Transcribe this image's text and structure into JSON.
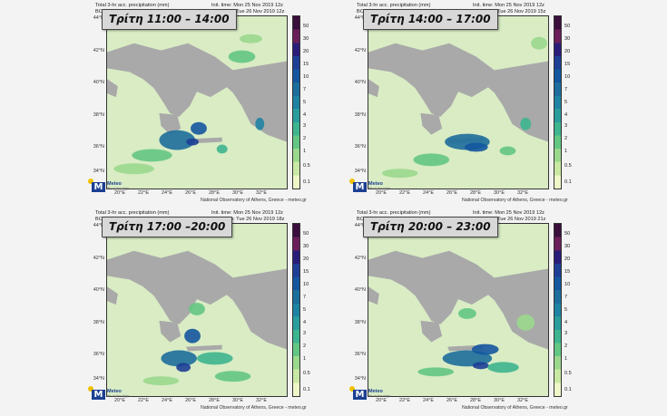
{
  "common": {
    "line1": "Total 3-hr acc. precipitation (mm)",
    "init_time": "Init. time: Mon 25 Nov 2019 12z",
    "credit": "National Observatory of Athens, Greece - meteo.gr",
    "logo_name": "Meteo",
    "logo_tag": "life on the edge",
    "logo_letter": "M",
    "lat_labels": [
      "44°N",
      "42°N",
      "40°N",
      "38°N",
      "36°N",
      "34°N"
    ],
    "lon_labels": [
      "20°E",
      "22°E",
      "24°E",
      "26°E",
      "28°E",
      "30°E",
      "32°E"
    ],
    "colorbar": {
      "labels": [
        "50",
        "30",
        "20",
        "15",
        "10",
        "7",
        "5",
        "4",
        "3",
        "2",
        "1",
        "0.5",
        "0.1"
      ],
      "colors": [
        "#3b0f3c",
        "#6b1f5a",
        "#2a1d7a",
        "#1d3f96",
        "#14579e",
        "#1d6e9c",
        "#1f83a3",
        "#2a9c9c",
        "#3eb58f",
        "#63c784",
        "#9ad88d",
        "#c8e8a3",
        "#eef7c8"
      ]
    }
  },
  "panels": [
    {
      "title": "Τρίτη 11:00 – 14:00",
      "line2": "BOLAM 6 km t+24",
      "valid": "Valid time: Tue 26 Nov 2019 12z"
    },
    {
      "title": "Τρίτη 14:00 – 17:00",
      "line2": "BOLAM 6 km t+27",
      "valid": "Valid time: Tue 26 Nov 2019 15z"
    },
    {
      "title": "Τρίτη 17:00 –20:00",
      "line2": "BOLAM 6 km t+30",
      "valid": "Valid time: Tue 26 Nov 2019 18z"
    },
    {
      "title": "Τρίτη 20:00 – 23:00",
      "line2": "BOLAM 6 km t+33",
      "valid": "Valid time: Tue 26 Nov 2019 21z"
    }
  ]
}
